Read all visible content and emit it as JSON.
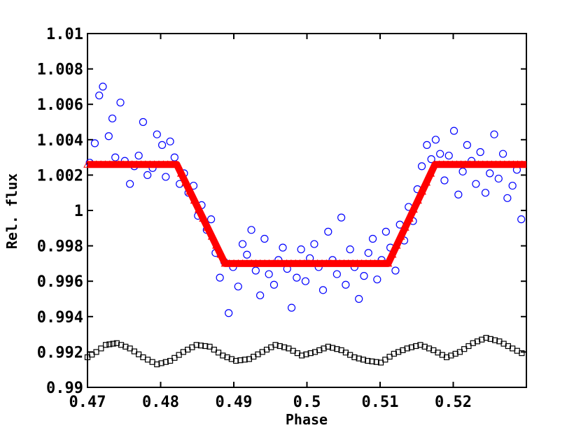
{
  "chart_data": {
    "type": "scatter",
    "title": "",
    "xlabel": "Phase",
    "ylabel": "Rel. flux",
    "xlim": [
      0.47,
      0.53
    ],
    "ylim": [
      0.99,
      1.01
    ],
    "x_ticks": [
      0.47,
      0.48,
      0.49,
      0.5,
      0.51,
      0.52
    ],
    "x_tick_labels": [
      "0.47",
      "0.48",
      "0.49",
      "0.5",
      "0.51",
      "0.52"
    ],
    "y_ticks": [
      0.99,
      0.992,
      0.994,
      0.996,
      0.998,
      1.0,
      1.002,
      1.004,
      1.006,
      1.008,
      1.01
    ],
    "y_tick_labels": [
      "0.99",
      "0.992",
      "0.994",
      "0.996",
      "0.998",
      "1",
      "1.002",
      "1.004",
      "1.006",
      "1.008",
      "1.01"
    ],
    "grid": false,
    "legend": "none",
    "series": [
      {
        "marker": "open-circle",
        "color": "#0000ff",
        "x": [
          0.4703,
          0.471,
          0.4716,
          0.4721,
          0.4729,
          0.4734,
          0.4738,
          0.4745,
          0.4751,
          0.4758,
          0.4764,
          0.477,
          0.4776,
          0.4782,
          0.4789,
          0.4795,
          0.4802,
          0.4807,
          0.4813,
          0.4819,
          0.4826,
          0.4832,
          0.4838,
          0.4845,
          0.4851,
          0.4856,
          0.4863,
          0.4869,
          0.4875,
          0.4881,
          0.4887,
          0.4893,
          0.4899,
          0.4906,
          0.4912,
          0.4918,
          0.4924,
          0.493,
          0.4936,
          0.4942,
          0.4948,
          0.4955,
          0.4961,
          0.4967,
          0.4973,
          0.4979,
          0.4986,
          0.4992,
          0.4998,
          0.5004,
          0.501,
          0.5016,
          0.5022,
          0.5029,
          0.5035,
          0.5041,
          0.5047,
          0.5053,
          0.5059,
          0.5065,
          0.5071,
          0.5078,
          0.5084,
          0.509,
          0.5096,
          0.5102,
          0.5108,
          0.5114,
          0.5121,
          0.5127,
          0.5133,
          0.5139,
          0.5145,
          0.5151,
          0.5157,
          0.5164,
          0.517,
          0.5176,
          0.5182,
          0.5188,
          0.5194,
          0.5201,
          0.5207,
          0.5213,
          0.5219,
          0.5225,
          0.5231,
          0.5237,
          0.5244,
          0.525,
          0.5256,
          0.5262,
          0.5268,
          0.5274,
          0.5281,
          0.5287,
          0.5293
        ],
        "y": [
          1.0027,
          1.0038,
          1.0065,
          1.007,
          1.0042,
          1.0052,
          1.003,
          1.0061,
          1.0028,
          1.0015,
          1.0025,
          1.0031,
          1.005,
          1.002,
          1.0024,
          1.0043,
          1.0037,
          1.0019,
          1.0039,
          1.003,
          1.0015,
          1.0021,
          1.001,
          1.0014,
          0.9997,
          1.0003,
          0.9989,
          0.9995,
          0.9976,
          0.9962,
          0.9971,
          0.9942,
          0.9968,
          0.9957,
          0.9981,
          0.9975,
          0.9989,
          0.9966,
          0.9952,
          0.9984,
          0.9964,
          0.9958,
          0.9972,
          0.9979,
          0.9967,
          0.9945,
          0.9962,
          0.9978,
          0.996,
          0.9973,
          0.9981,
          0.9968,
          0.9955,
          0.9988,
          0.9972,
          0.9964,
          0.9996,
          0.9958,
          0.9978,
          0.9968,
          0.995,
          0.9963,
          0.9976,
          0.9984,
          0.9961,
          0.9972,
          0.9988,
          0.9979,
          0.9966,
          0.9992,
          0.9983,
          1.0002,
          0.9994,
          1.0012,
          1.0025,
          1.0037,
          1.0029,
          1.004,
          1.0032,
          1.0017,
          1.0031,
          1.0045,
          1.0009,
          1.0022,
          1.0037,
          1.0028,
          1.0015,
          1.0033,
          1.001,
          1.0021,
          1.0043,
          1.0018,
          1.0032,
          1.0007,
          1.0014,
          1.0023,
          0.9995
        ]
      },
      {
        "marker": "triangle",
        "color": "#ff0000",
        "x": [
          0.47,
          0.4822,
          0.4888,
          0.5111,
          0.5175,
          0.53
        ],
        "y": [
          1.0026,
          1.0026,
          0.997,
          0.997,
          1.0026,
          1.0026
        ]
      },
      {
        "marker": "open-square",
        "color": "#000000",
        "x": [
          0.47,
          0.4712,
          0.4725,
          0.474,
          0.4758,
          0.4776,
          0.4795,
          0.4813,
          0.4831,
          0.4849,
          0.4867,
          0.4885,
          0.4903,
          0.4921,
          0.4939,
          0.4957,
          0.4975,
          0.4993,
          0.5011,
          0.5029,
          0.5047,
          0.5065,
          0.5083,
          0.5101,
          0.5119,
          0.5137,
          0.5155,
          0.5173,
          0.5191,
          0.5209,
          0.5227,
          0.5245,
          0.5263,
          0.5281,
          0.53
        ],
        "y": [
          0.9917,
          0.992,
          0.9924,
          0.9925,
          0.9922,
          0.9917,
          0.9913,
          0.9915,
          0.992,
          0.9924,
          0.9923,
          0.9918,
          0.9915,
          0.9916,
          0.992,
          0.9924,
          0.9922,
          0.9918,
          0.992,
          0.9923,
          0.9921,
          0.9917,
          0.9915,
          0.9914,
          0.9919,
          0.9922,
          0.9924,
          0.9921,
          0.9917,
          0.992,
          0.9925,
          0.9928,
          0.9926,
          0.9922,
          0.9918
        ]
      }
    ]
  }
}
